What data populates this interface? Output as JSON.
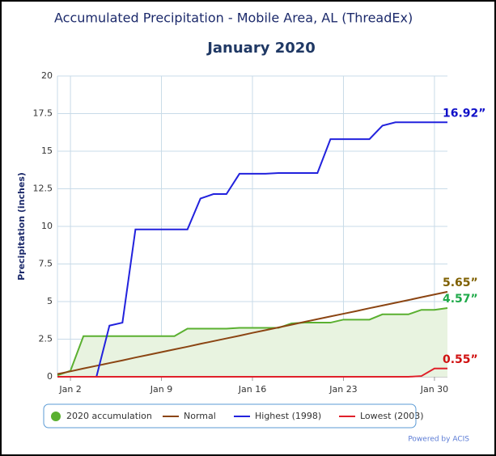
{
  "chart_data": {
    "type": "line",
    "title": "Accumulated Precipitation - Mobile Area, AL (ThreadEx)",
    "subtitle": "January 2020",
    "y_label": "Precipitation (inches)",
    "credit": "Powered by ACIS",
    "categories": [
      null,
      "Jan 2",
      null,
      null,
      null,
      null,
      null,
      null,
      "Jan 9",
      null,
      null,
      null,
      null,
      null,
      null,
      "Jan 16",
      null,
      null,
      null,
      null,
      null,
      null,
      "Jan 23",
      null,
      null,
      null,
      null,
      null,
      null,
      "Jan 30",
      null
    ],
    "ylim": [
      0,
      20
    ],
    "yticks": [
      0,
      2.5,
      5,
      7.5,
      10,
      12.5,
      15,
      17.5,
      20
    ],
    "grid": true,
    "series": [
      {
        "name": "2020 accumulation",
        "color": "#5ab030",
        "fill": "#e8f3e0",
        "marker": "circle",
        "end_label": "4.57”",
        "label_color": "#1faa4a",
        "values": [
          0.1,
          0.4,
          2.7,
          2.7,
          2.7,
          2.7,
          2.7,
          2.7,
          2.7,
          2.7,
          3.2,
          3.2,
          3.2,
          3.2,
          3.25,
          3.25,
          3.25,
          3.25,
          3.55,
          3.6,
          3.6,
          3.6,
          3.8,
          3.8,
          3.8,
          4.15,
          4.15,
          4.15,
          4.45,
          4.45,
          4.57
        ]
      },
      {
        "name": "Normal",
        "color": "#8b4513",
        "end_label": "5.65”",
        "label_color": "#7f6000",
        "values": [
          0.18,
          0.36,
          0.55,
          0.73,
          0.91,
          1.09,
          1.28,
          1.46,
          1.64,
          1.82,
          2.0,
          2.19,
          2.37,
          2.55,
          2.73,
          2.92,
          3.1,
          3.28,
          3.46,
          3.65,
          3.83,
          4.01,
          4.19,
          4.37,
          4.56,
          4.74,
          4.92,
          5.1,
          5.29,
          5.47,
          5.65
        ]
      },
      {
        "name": "Highest (1998)",
        "color": "#2222dd",
        "end_label": "16.92”",
        "label_color": "#1010c8",
        "values": [
          0,
          0,
          0,
          0,
          3.4,
          3.6,
          9.8,
          9.8,
          9.8,
          9.8,
          9.8,
          11.85,
          12.15,
          12.15,
          13.5,
          13.5,
          13.5,
          13.55,
          13.55,
          13.55,
          13.55,
          15.8,
          15.8,
          15.8,
          15.8,
          16.7,
          16.92,
          16.92,
          16.92,
          16.92,
          16.92
        ]
      },
      {
        "name": "Lowest (2003)",
        "color": "#e0202a",
        "end_label": "0.55”",
        "label_color": "#d01010",
        "values": [
          0,
          0,
          0,
          0,
          0,
          0,
          0,
          0,
          0,
          0,
          0,
          0,
          0,
          0,
          0,
          0,
          0,
          0,
          0,
          0,
          0,
          0,
          0,
          0,
          0,
          0,
          0,
          0,
          0.05,
          0.55,
          0.55
        ]
      }
    ]
  }
}
